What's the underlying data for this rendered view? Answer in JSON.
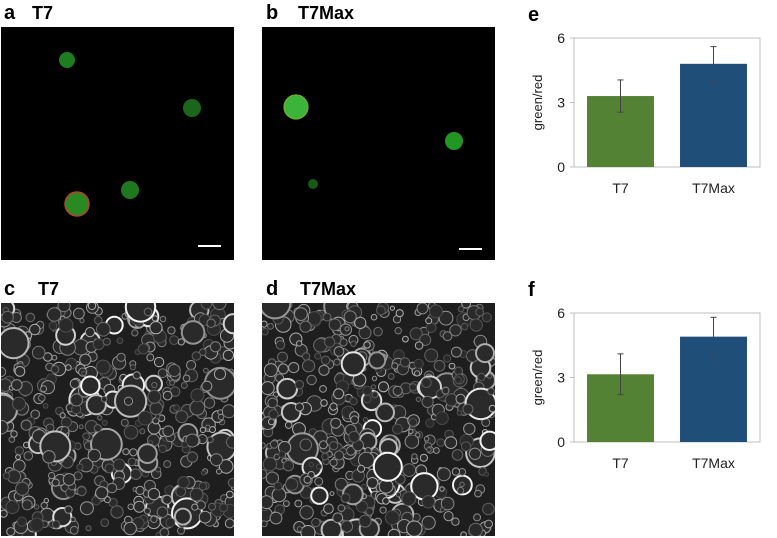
{
  "panels": {
    "a": {
      "letter": "a",
      "title": "T7"
    },
    "b": {
      "letter": "b",
      "title": "T7Max"
    },
    "c": {
      "letter": "c",
      "title": "T7"
    },
    "d": {
      "letter": "d",
      "title": "T7Max"
    },
    "e": {
      "letter": "e"
    },
    "f": {
      "letter": "f"
    }
  },
  "colors": {
    "T7_bar": "#548235",
    "T7Max_bar": "#1f4e79",
    "droplet_green": "#1f8f1f",
    "droplet_edge_red": "#c0392b"
  },
  "chart_data": [
    {
      "panel": "e",
      "type": "bar",
      "categories": [
        "T7",
        "T7Max"
      ],
      "values": [
        3.3,
        4.8
      ],
      "errors": [
        0.75,
        0.8
      ],
      "ylabel": "green/red",
      "ylim": [
        0,
        6
      ],
      "yticks": [
        "0",
        "3",
        "6"
      ],
      "grid": false,
      "legend": "none"
    },
    {
      "panel": "f",
      "type": "bar",
      "categories": [
        "T7",
        "T7Max"
      ],
      "values": [
        3.15,
        4.9
      ],
      "errors": [
        0.95,
        0.9
      ],
      "ylabel": "green/red",
      "ylim": [
        0,
        6
      ],
      "yticks": [
        "0",
        "3",
        "6"
      ],
      "grid": false,
      "legend": "none"
    }
  ]
}
